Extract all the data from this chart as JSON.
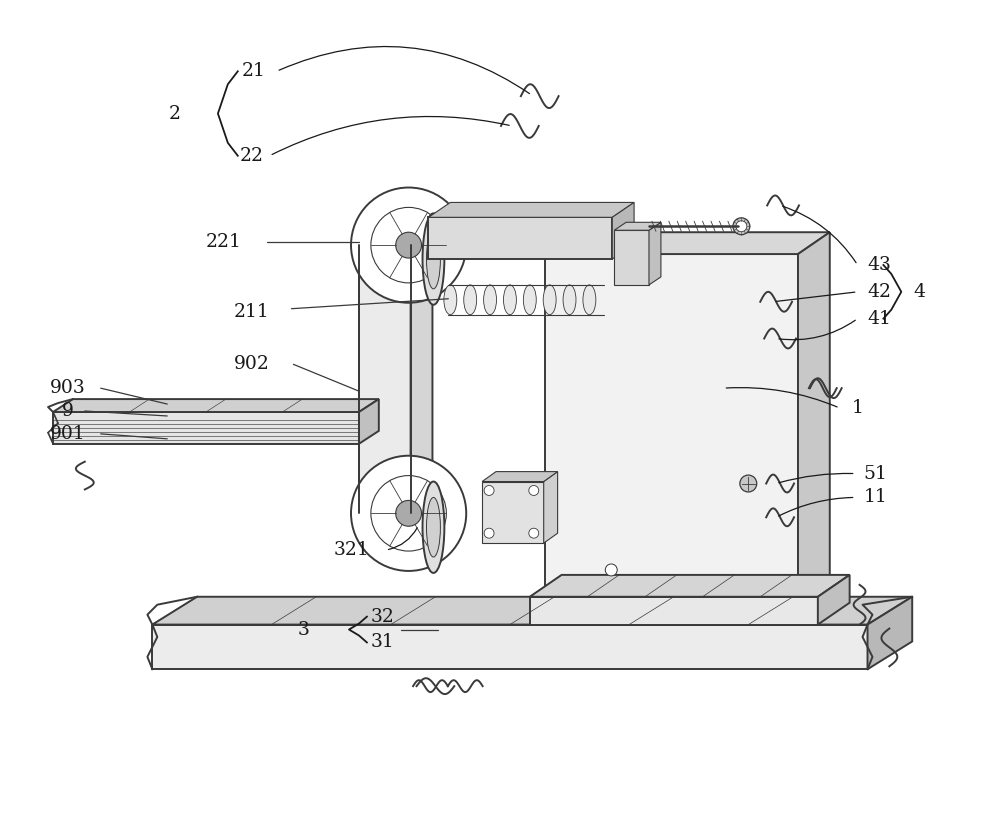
{
  "background_color": "#ffffff",
  "line_color": "#3a3a3a",
  "figure_width": 10.0,
  "figure_height": 8.26,
  "dpi": 100
}
